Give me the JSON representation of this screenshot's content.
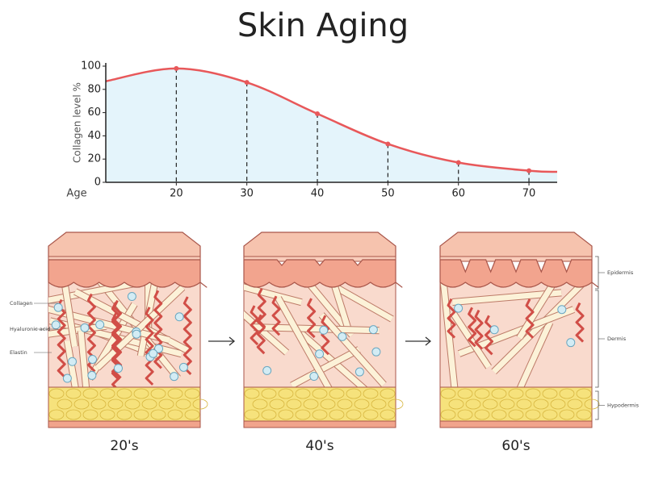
{
  "chart_data": {
    "type": "line",
    "title": "Skin Aging",
    "y_label": "Collagen level %",
    "x_label": "Age",
    "xlim": [
      10,
      74
    ],
    "xticks": [
      20,
      30,
      40,
      50,
      60,
      70
    ],
    "ylim": [
      0,
      100
    ],
    "yticks": [
      0,
      20,
      40,
      60,
      80,
      100
    ],
    "series": [
      {
        "color": "#e8585a",
        "x": [
          10,
          20,
          30,
          40,
          50,
          60,
          70,
          74
        ],
        "values": [
          87,
          98,
          86,
          59,
          33,
          17,
          10,
          9
        ]
      }
    ],
    "area_color": "#e4f4fb"
  },
  "diagram": {
    "stages": [
      "20's",
      "40's",
      "60's"
    ],
    "left_labels": [
      "Collagen",
      "Hyaluronic acid",
      "Elastin"
    ],
    "layers": [
      "Epidermis",
      "Dermis",
      "Hypodermis"
    ]
  }
}
